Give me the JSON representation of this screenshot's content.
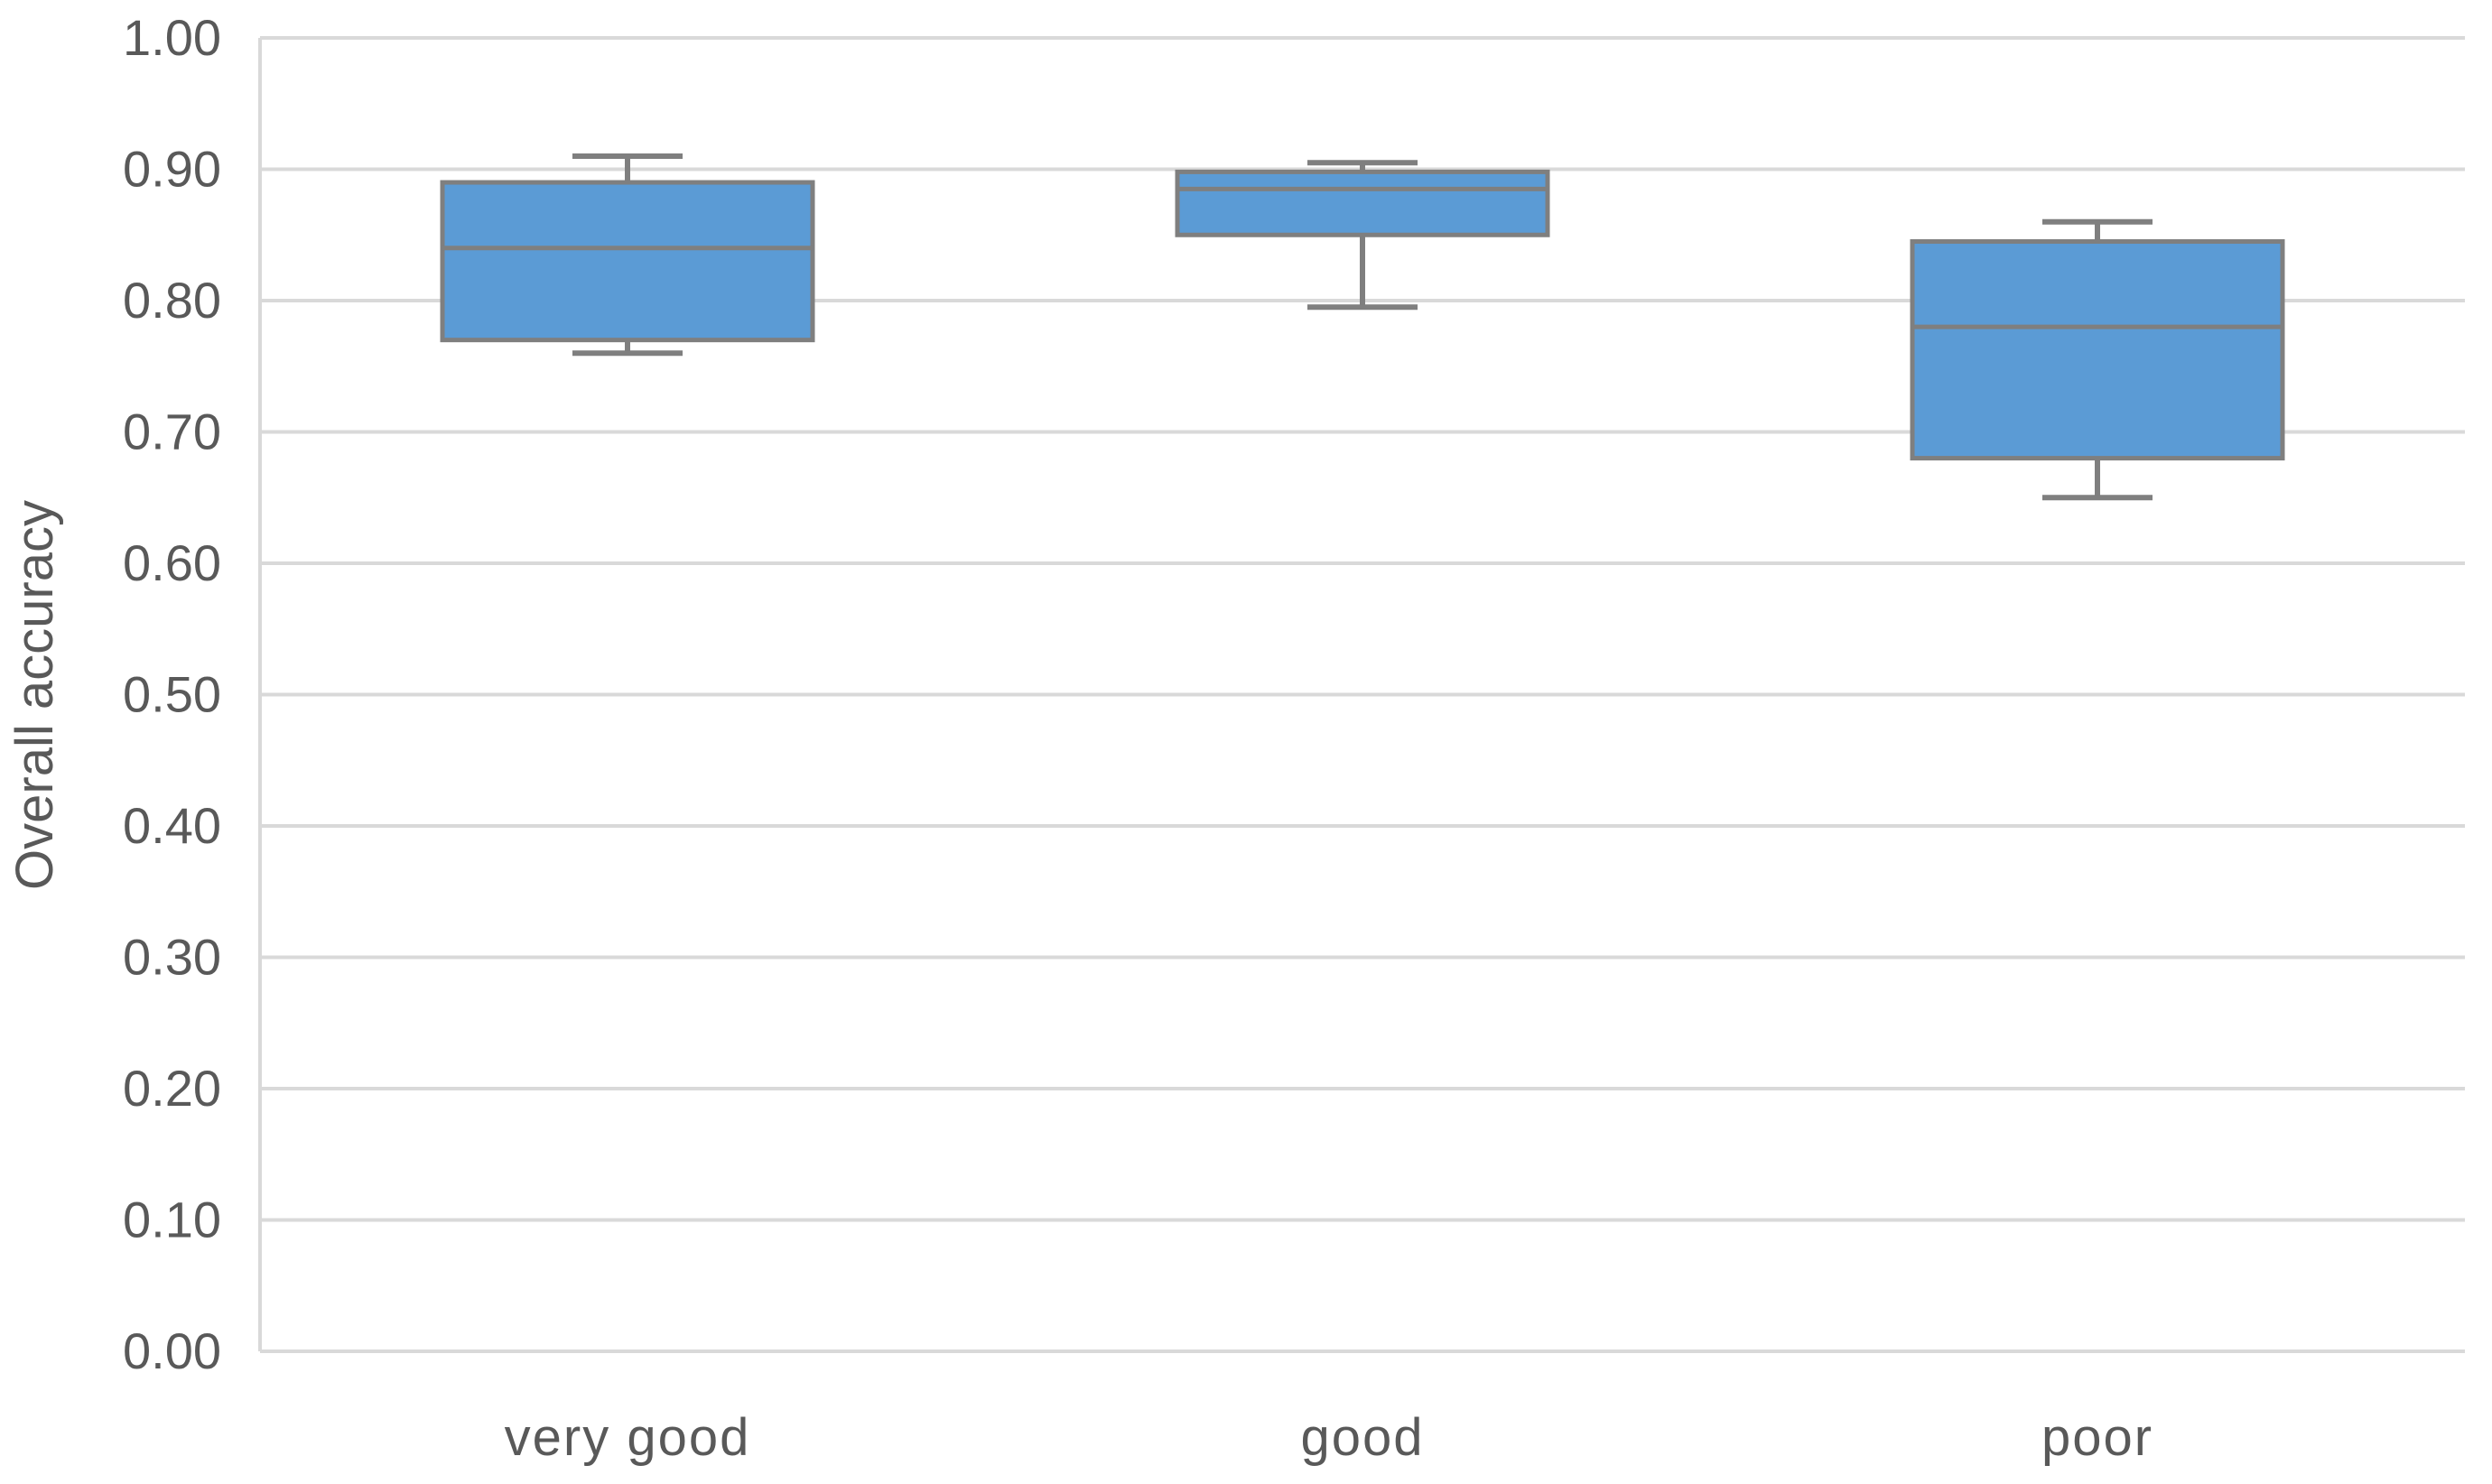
{
  "chart_data": {
    "type": "boxplot",
    "title": "",
    "xlabel": "",
    "ylabel": "Overall accuracy",
    "ylim": [
      0.0,
      1.0
    ],
    "ytick_step": 0.1,
    "ytick_labels": [
      "0.00",
      "0.10",
      "0.20",
      "0.30",
      "0.40",
      "0.50",
      "0.60",
      "0.70",
      "0.80",
      "0.90",
      "1.00"
    ],
    "categories": [
      "very good",
      "good",
      "poor"
    ],
    "series": [
      {
        "name": "very good",
        "min": 0.76,
        "q1": 0.77,
        "median": 0.84,
        "q3": 0.89,
        "max": 0.91
      },
      {
        "name": "good",
        "min": 0.795,
        "q1": 0.85,
        "median": 0.885,
        "q3": 0.898,
        "max": 0.905
      },
      {
        "name": "poor",
        "min": 0.65,
        "q1": 0.68,
        "median": 0.78,
        "q3": 0.845,
        "max": 0.86
      }
    ],
    "grid": "horizontal",
    "legend_position": "none"
  },
  "colors": {
    "box_fill": "#5B9BD5",
    "box_border": "#7F7F7F",
    "whisker": "#7F7F7F",
    "median": "#7F7F7F",
    "gridline": "#D9D9D9",
    "axis_line": "#D9D9D9",
    "text": "#595959",
    "background": "#FFFFFF"
  }
}
